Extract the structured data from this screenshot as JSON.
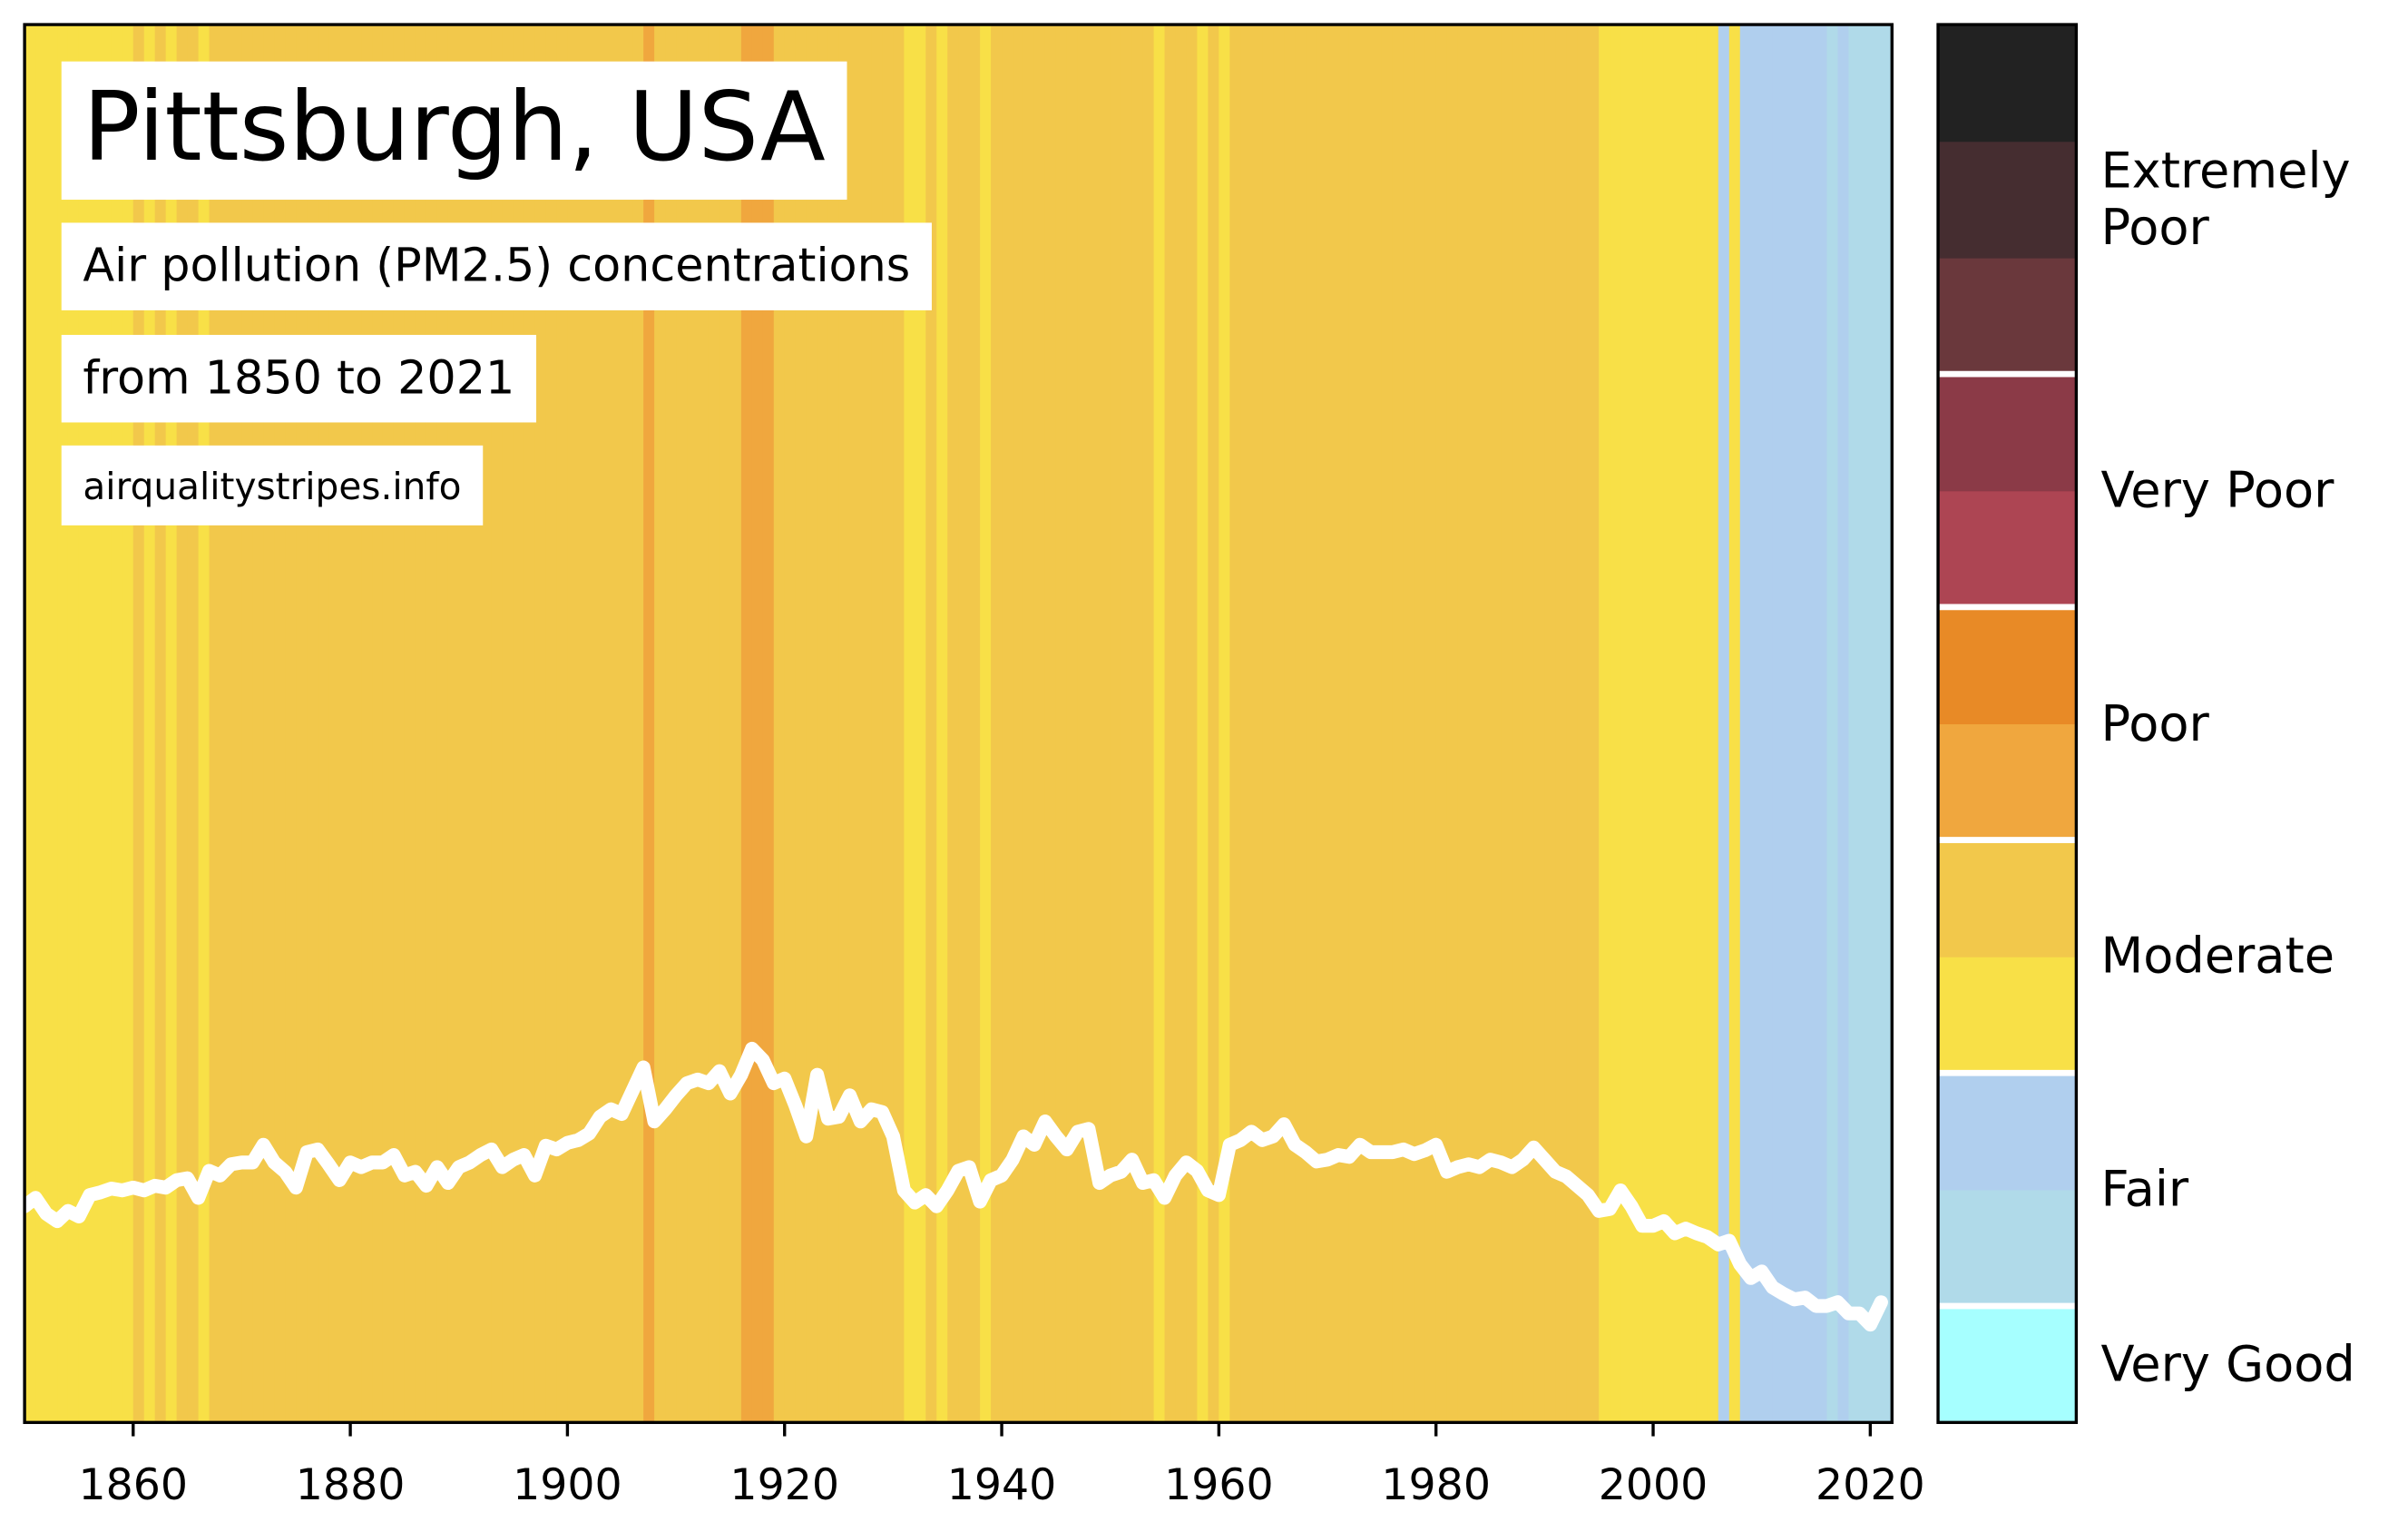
{
  "chart_data": {
    "type": "line",
    "title": "Pittsburgh, USA",
    "subtitle": "Air pollution (PM2.5) concentrations",
    "annotations": [
      "from 1850 to 2021",
      "airqualitystripes.info"
    ],
    "x": [
      1850,
      1851,
      1852,
      1853,
      1854,
      1855,
      1856,
      1857,
      1858,
      1859,
      1860,
      1861,
      1862,
      1863,
      1864,
      1865,
      1866,
      1867,
      1868,
      1869,
      1870,
      1871,
      1872,
      1873,
      1874,
      1875,
      1876,
      1877,
      1878,
      1879,
      1880,
      1881,
      1882,
      1883,
      1884,
      1885,
      1886,
      1887,
      1888,
      1889,
      1890,
      1891,
      1892,
      1893,
      1894,
      1895,
      1896,
      1897,
      1898,
      1899,
      1900,
      1901,
      1902,
      1903,
      1904,
      1905,
      1906,
      1907,
      1908,
      1909,
      1910,
      1911,
      1912,
      1913,
      1914,
      1915,
      1916,
      1917,
      1918,
      1919,
      1920,
      1921,
      1922,
      1923,
      1924,
      1925,
      1926,
      1927,
      1928,
      1929,
      1930,
      1931,
      1932,
      1933,
      1934,
      1935,
      1936,
      1937,
      1938,
      1939,
      1940,
      1941,
      1942,
      1943,
      1944,
      1945,
      1946,
      1947,
      1948,
      1949,
      1950,
      1951,
      1952,
      1953,
      1954,
      1955,
      1956,
      1957,
      1958,
      1959,
      1960,
      1961,
      1962,
      1963,
      1964,
      1965,
      1966,
      1967,
      1968,
      1969,
      1970,
      1971,
      1972,
      1973,
      1974,
      1975,
      1976,
      1977,
      1978,
      1979,
      1980,
      1981,
      1982,
      1983,
      1984,
      1985,
      1986,
      1987,
      1988,
      1989,
      1990,
      1991,
      1992,
      1993,
      1994,
      1995,
      1996,
      1997,
      1998,
      1999,
      2000,
      2001,
      2002,
      2003,
      2004,
      2005,
      2006,
      2007,
      2008,
      2009,
      2010,
      2011,
      2012,
      2013,
      2014,
      2015,
      2016,
      2017,
      2018,
      2019,
      2020,
      2021
    ],
    "values": [
      23.2,
      24.1,
      22.4,
      21.6,
      22.7,
      22.1,
      24.4,
      24.7,
      25.1,
      24.9,
      25.2,
      24.9,
      25.4,
      25.2,
      26.0,
      26.2,
      24.1,
      27.0,
      26.5,
      27.7,
      27.9,
      27.9,
      29.8,
      27.9,
      26.9,
      25.2,
      29.0,
      29.3,
      27.7,
      26.0,
      27.9,
      27.4,
      27.9,
      27.9,
      28.7,
      26.5,
      26.9,
      25.4,
      27.4,
      25.7,
      27.4,
      27.9,
      28.7,
      29.3,
      27.4,
      28.2,
      28.7,
      26.5,
      29.7,
      29.3,
      30.0,
      30.3,
      31.0,
      32.8,
      33.6,
      33.1,
      35.6,
      38.1,
      32.3,
      33.6,
      35.1,
      36.4,
      36.8,
      36.4,
      37.7,
      35.3,
      37.3,
      40.1,
      38.9,
      36.4,
      36.9,
      34.0,
      30.7,
      37.3,
      32.6,
      32.8,
      35.1,
      32.3,
      33.6,
      33.3,
      30.7,
      24.9,
      23.6,
      24.4,
      23.2,
      24.9,
      27.0,
      27.4,
      23.7,
      26.0,
      26.5,
      28.2,
      30.7,
      29.8,
      32.3,
      30.7,
      29.3,
      31.2,
      31.5,
      25.7,
      26.5,
      26.9,
      28.2,
      25.7,
      26.0,
      24.1,
      26.5,
      27.9,
      27.0,
      24.9,
      24.4,
      29.8,
      30.3,
      31.2,
      30.3,
      30.7,
      32.0,
      29.8,
      29.0,
      28.0,
      28.2,
      28.7,
      28.5,
      29.8,
      29.0,
      29.0,
      29.0,
      29.3,
      28.8,
      29.2,
      29.8,
      26.9,
      27.4,
      27.7,
      27.4,
      28.2,
      27.9,
      27.4,
      28.2,
      29.5,
      28.2,
      26.9,
      26.4,
      25.4,
      24.4,
      22.7,
      22.9,
      24.9,
      23.2,
      21.1,
      21.1,
      21.6,
      20.3,
      20.8,
      20.3,
      19.9,
      19.1,
      19.5,
      17.0,
      15.5,
      16.2,
      14.5,
      13.8,
      13.2,
      13.4,
      12.5,
      12.5,
      12.9,
      11.7,
      11.7,
      10.5,
      12.9
    ],
    "stripe_colors": [
      "#f8e047",
      "#f8e047",
      "#f8e047",
      "#f8e047",
      "#f8e047",
      "#f8e047",
      "#f8e047",
      "#f8e047",
      "#f8e047",
      "#f8e047",
      "#f2c84b",
      "#f8e047",
      "#f2c84b",
      "#f8e047",
      "#f2c84b",
      "#f2c84b",
      "#f8e047",
      "#f2c84b",
      "#f2c84b",
      "#f2c84b",
      "#f2c84b",
      "#f2c84b",
      "#f2c84b",
      "#f2c84b",
      "#f2c84b",
      "#f2c84b",
      "#f2c84b",
      "#f2c84b",
      "#f2c84b",
      "#f2c84b",
      "#f2c84b",
      "#f2c84b",
      "#f2c84b",
      "#f2c84b",
      "#f2c84b",
      "#f2c84b",
      "#f2c84b",
      "#f2c84b",
      "#f2c84b",
      "#f2c84b",
      "#f2c84b",
      "#f2c84b",
      "#f2c84b",
      "#f2c84b",
      "#f2c84b",
      "#f2c84b",
      "#f2c84b",
      "#f2c84b",
      "#f2c84b",
      "#f2c84b",
      "#f2c84b",
      "#f2c84b",
      "#f2c84b",
      "#f2c84b",
      "#f2c84b",
      "#f2c84b",
      "#f2c84b",
      "#f0a73e",
      "#f2c84b",
      "#f2c84b",
      "#f2c84b",
      "#f2c84b",
      "#f2c84b",
      "#f2c84b",
      "#f2c84b",
      "#f2c84b",
      "#f0a73e",
      "#f0a73e",
      "#f0a73e",
      "#f2c84b",
      "#f2c84b",
      "#f2c84b",
      "#f2c84b",
      "#f2c84b",
      "#f2c84b",
      "#f2c84b",
      "#f2c84b",
      "#f2c84b",
      "#f2c84b",
      "#f2c84b",
      "#f2c84b",
      "#f8e047",
      "#f8e047",
      "#f2c84b",
      "#f8e047",
      "#f2c84b",
      "#f2c84b",
      "#f2c84b",
      "#f8e047",
      "#f2c84b",
      "#f2c84b",
      "#f2c84b",
      "#f2c84b",
      "#f2c84b",
      "#f2c84b",
      "#f2c84b",
      "#f2c84b",
      "#f2c84b",
      "#f2c84b",
      "#f2c84b",
      "#f2c84b",
      "#f2c84b",
      "#f2c84b",
      "#f2c84b",
      "#f8e047",
      "#f2c84b",
      "#f2c84b",
      "#f2c84b",
      "#f8e047",
      "#f2c84b",
      "#f8e047",
      "#f2c84b",
      "#f2c84b",
      "#f2c84b",
      "#f2c84b",
      "#f2c84b",
      "#f2c84b",
      "#f2c84b",
      "#f2c84b",
      "#f2c84b",
      "#f2c84b",
      "#f2c84b",
      "#f2c84b",
      "#f2c84b",
      "#f2c84b",
      "#f2c84b",
      "#f2c84b",
      "#f2c84b",
      "#f2c84b",
      "#f2c84b",
      "#f2c84b",
      "#f2c84b",
      "#f2c84b",
      "#f2c84b",
      "#f2c84b",
      "#f2c84b",
      "#f2c84b",
      "#f2c84b",
      "#f2c84b",
      "#f2c84b",
      "#f2c84b",
      "#f2c84b",
      "#f2c84b",
      "#f2c84b",
      "#f2c84b",
      "#f8e047",
      "#f8e047",
      "#f8e047",
      "#f8e047",
      "#f8e047",
      "#f8e047",
      "#f8e047",
      "#f8e047",
      "#f8e047",
      "#f8e047",
      "#f8e047",
      "#b0cfee",
      "#f8e047",
      "#b0cfee",
      "#b0cfee",
      "#b0cfee",
      "#b0cfee",
      "#b0cfee",
      "#b0cfee",
      "#b0cfee",
      "#b0cfee",
      "#b0dae9",
      "#b0cfee",
      "#b0dae9",
      "#b0dae9",
      "#b0dae9",
      "#b0dae9"
    ],
    "line_color": "#ffffff",
    "xlim": [
      1850,
      2022
    ],
    "ylim": [
      0,
      150
    ],
    "xticks": [
      1860,
      1880,
      1900,
      1920,
      1940,
      1960,
      1980,
      2000,
      2020
    ],
    "legend": [
      {
        "label": "Very Good",
        "colors": [
          "#a6ffff"
        ]
      },
      {
        "label": "Fair",
        "colors": [
          "#b0dae9",
          "#b0cfee"
        ]
      },
      {
        "label": "Moderate",
        "colors": [
          "#f8e047",
          "#f2c84b"
        ]
      },
      {
        "label": "Poor",
        "colors": [
          "#f0a73e",
          "#e88a26"
        ]
      },
      {
        "label": "Very Poor",
        "colors": [
          "#ad4553",
          "#8b3a47"
        ]
      },
      {
        "label": "Extremely\nPoor",
        "colors": [
          "#6a383c",
          "#452d30",
          "#222222"
        ]
      }
    ]
  }
}
